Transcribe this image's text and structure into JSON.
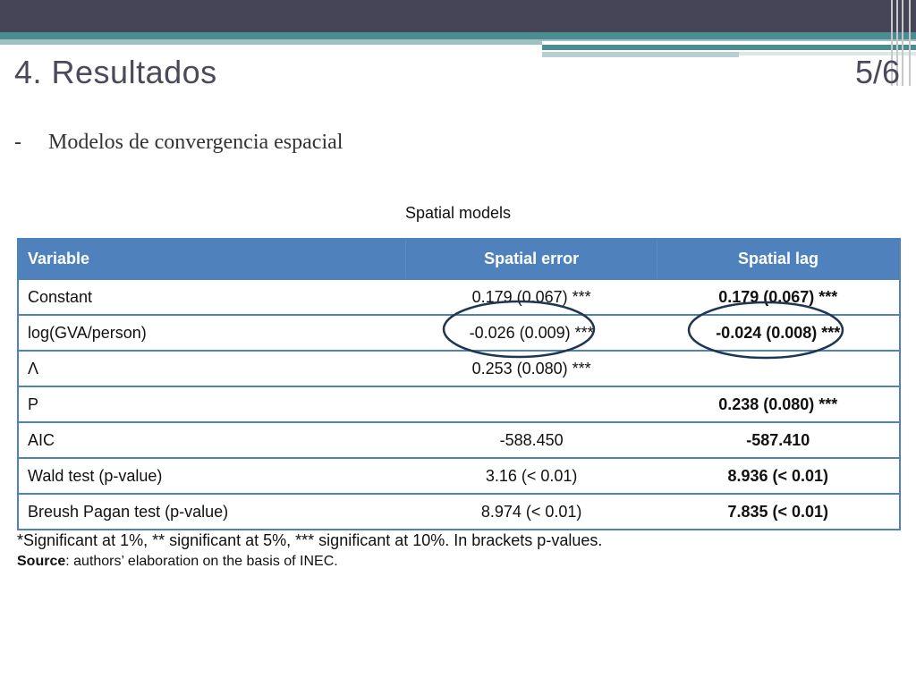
{
  "slide": {
    "title": "4. Resultados",
    "page_number": "5/6",
    "bullet_dash": "-",
    "bullet_text": "Modelos de convergencia espacial"
  },
  "table": {
    "caption": "Spatial models",
    "headers": [
      "Variable",
      "Spatial error",
      "Spatial lag"
    ],
    "rows": [
      [
        "Constant",
        "0.179 (0.067) ***",
        "0.179 (0.067) ***"
      ],
      [
        "log(GVA/person)",
        "-0.026 (0.009) ***",
        "-0.024 (0.008) ***"
      ],
      [
        "Λ",
        "0.253 (0.080) ***",
        ""
      ],
      [
        "P",
        "",
        "0.238 (0.080) ***"
      ],
      [
        "AIC",
        "-588.450",
        "-587.410"
      ],
      [
        "Wald test (p-value)",
        "3.16 (< 0.01)",
        "8.936 (< 0.01)"
      ],
      [
        "Breush Pagan test (p-value)",
        "8.974 (< 0.01)",
        "7.835 (< 0.01)"
      ]
    ]
  },
  "notes": {
    "significance": "*Significant at 1%, ** significant at 5%, *** significant at 10%. In brackets p-values.",
    "source_label": "Source",
    "source_text": ": authors’ elaboration on the basis of INEC."
  },
  "colors": {
    "header_blue": "#4f81bd",
    "ellipse_navy": "#1f3550",
    "top_band": "#454557",
    "teal": "#4c8d92"
  }
}
